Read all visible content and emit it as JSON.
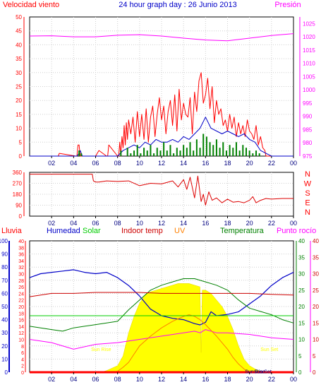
{
  "chart_data": [
    {
      "type": "line",
      "title": "24 hour graph day : 26 Junio 2013",
      "left_axis_title": "Velocidad viento",
      "right_axis_title": "Presión",
      "left_ylim": [
        0,
        50
      ],
      "left_ticks": [
        0,
        5,
        10,
        15,
        20,
        25,
        30,
        35,
        40,
        45,
        50
      ],
      "right_ylim": [
        975,
        1027.5
      ],
      "right_ticks": [
        975,
        980,
        985,
        990,
        995,
        1000,
        1005,
        1010,
        1015,
        1020,
        1025
      ],
      "x_ticks": [
        "02",
        "04",
        "06",
        "08",
        "10",
        "12",
        "14",
        "16",
        "18",
        "20",
        "22",
        "00"
      ],
      "grid": true,
      "series": [
        {
          "key": "gust",
          "color": "#ff0000",
          "x": [
            0,
            2.6,
            2.7,
            4.2,
            4.3,
            4.4,
            4.5,
            4.6,
            5,
            6,
            6.3,
            7,
            7.1,
            7.2,
            8,
            8.1,
            8.2,
            8.3,
            8.4,
            8.5,
            8.6,
            8.7,
            8.8,
            8.9,
            9,
            9.2,
            9.4,
            9.6,
            9.8,
            10,
            10.2,
            10.4,
            10.6,
            10.8,
            11,
            11.2,
            11.4,
            11.6,
            11.8,
            12,
            12.2,
            12.4,
            12.6,
            12.8,
            13,
            13.2,
            13.4,
            13.6,
            13.8,
            14,
            14.2,
            14.4,
            14.6,
            14.8,
            15,
            15.2,
            15.4,
            15.6,
            15.8,
            16,
            16.2,
            16.4,
            16.6,
            16.8,
            17,
            17.2,
            17.4,
            17.6,
            17.8,
            18,
            18.2,
            18.4,
            18.6,
            18.8,
            19,
            19.2,
            19.4,
            19.6,
            19.8,
            20,
            20.2,
            20.4,
            20.6,
            20.8,
            21,
            21.2,
            21.4,
            21.5,
            22,
            24
          ],
          "values": [
            0,
            0,
            1,
            0,
            0,
            4,
            4,
            0,
            0,
            0,
            2,
            0,
            0,
            4,
            0,
            0,
            5,
            0,
            7,
            3,
            11,
            4,
            12,
            6,
            13,
            8,
            14,
            5,
            16,
            7,
            15,
            6,
            17,
            5,
            14,
            18,
            7,
            15,
            21,
            13,
            18,
            8,
            16,
            20,
            11,
            22,
            9,
            24,
            13,
            19,
            15,
            14,
            21,
            8,
            23,
            16,
            27,
            30,
            19,
            22,
            28,
            17,
            25,
            12,
            20,
            15,
            17,
            11,
            13,
            9,
            15,
            10,
            14,
            7,
            12,
            8,
            11,
            7,
            13,
            9,
            8,
            6,
            11,
            4,
            7,
            3,
            2,
            0,
            0,
            0
          ]
        },
        {
          "key": "avg",
          "color": "#0000c8",
          "x": [
            0,
            4.3,
            4.5,
            4.6,
            4.8,
            7,
            8,
            8.5,
            9,
            9.5,
            10,
            10.5,
            11,
            11.5,
            12,
            12.5,
            13,
            13.5,
            14,
            14.5,
            15,
            15.5,
            16,
            16.5,
            17,
            17.5,
            18,
            18.5,
            19,
            19.5,
            20,
            20.5,
            21,
            21.5,
            22,
            24
          ],
          "values": [
            0,
            0,
            1,
            2,
            0,
            0,
            0,
            2,
            3,
            4,
            3,
            5,
            4,
            6,
            5,
            5,
            6,
            5,
            7,
            6,
            8,
            10,
            14,
            10,
            9,
            8,
            9,
            8,
            7,
            8,
            6,
            5,
            2,
            1,
            0,
            0
          ]
        },
        {
          "key": "wind",
          "color": "#008000",
          "x": [
            0,
            4.3,
            4.5,
            4.7,
            5,
            8,
            8.3,
            8.6,
            8.9,
            9.2,
            9.5,
            9.8,
            10.1,
            10.4,
            10.7,
            11,
            11.3,
            11.6,
            11.9,
            12.2,
            12.5,
            12.8,
            13.1,
            13.4,
            13.7,
            14,
            14.3,
            14.6,
            14.9,
            15.2,
            15.5,
            15.8,
            16.1,
            16.4,
            16.7,
            17,
            17.3,
            17.6,
            17.9,
            18.2,
            18.5,
            18.8,
            19.1,
            19.4,
            19.7,
            20,
            20.3,
            20.6,
            20.9,
            21.2,
            21.5,
            22,
            24
          ],
          "values": [
            0,
            0,
            2,
            1,
            0,
            0,
            2,
            0,
            3,
            1,
            2,
            4,
            1,
            3,
            2,
            4,
            1,
            3,
            2,
            5,
            2,
            4,
            1,
            3,
            2,
            4,
            3,
            5,
            2,
            6,
            3,
            8,
            7,
            5,
            4,
            6,
            3,
            5,
            2,
            4,
            3,
            5,
            2,
            4,
            3,
            2,
            1,
            2,
            1,
            0,
            0,
            0,
            0
          ]
        },
        {
          "key": "pressure",
          "color": "#ff00ff",
          "axis": "right",
          "x": [
            0,
            2,
            4,
            6,
            8,
            10,
            12,
            14,
            16,
            18,
            20,
            22,
            24
          ],
          "values": [
            1020.3,
            1020.4,
            1020.0,
            1020.0,
            1020.6,
            1020.8,
            1020.3,
            1019.5,
            1018.8,
            1018.5,
            1019.5,
            1020.5,
            1021.2
          ]
        }
      ]
    },
    {
      "type": "scatter",
      "right_axis_labels": [
        "N",
        "W",
        "S",
        "E",
        "N"
      ],
      "left_ylim": [
        0,
        360
      ],
      "left_ticks": [
        0,
        90,
        180,
        270,
        360
      ],
      "x_ticks": [
        "02",
        "04",
        "06",
        "08",
        "10",
        "12",
        "14",
        "16",
        "18",
        "20",
        "22",
        "00"
      ],
      "grid": true,
      "series": [
        {
          "key": "direction",
          "color": "#dd0000",
          "x": [
            0,
            2,
            4,
            5.7,
            5.8,
            6,
            6.3,
            7,
            8,
            9,
            10,
            11,
            12,
            13,
            13.5,
            14,
            14.3,
            14.6,
            15,
            15.3,
            15.6,
            15.8,
            16,
            16.3,
            16.6,
            17,
            17.5,
            18,
            18.5,
            19,
            19.5,
            20,
            20.3,
            20.6,
            21,
            21.5,
            22,
            23,
            24
          ],
          "values": [
            345,
            345,
            345,
            345,
            290,
            280,
            280,
            290,
            285,
            290,
            250,
            270,
            265,
            290,
            240,
            300,
            220,
            320,
            150,
            330,
            120,
            180,
            90,
            200,
            130,
            150,
            110,
            140,
            115,
            120,
            110,
            130,
            160,
            110,
            130,
            145,
            140,
            145,
            145
          ]
        }
      ]
    },
    {
      "type": "line",
      "axis_titles": [
        "Lluvia",
        "Humedad",
        "Solar",
        "Indoor temp",
        "UV",
        "Temperatura",
        "Punto rocío"
      ],
      "axis_title_colors": [
        "#ff0000",
        "#0000c8",
        "#00cc00",
        "#cc0000",
        "#ff8000",
        "#008000",
        "#ff00ff"
      ],
      "humidity_ylim": [
        0,
        100
      ],
      "humidity_ticks": [
        0,
        10,
        20,
        30,
        40,
        50,
        60,
        70,
        80,
        90,
        100
      ],
      "rain_ylim": [
        0,
        40
      ],
      "rain_ticks": [
        0,
        2,
        4,
        6,
        8,
        10,
        12,
        14,
        16,
        18,
        20,
        22,
        24,
        26,
        28,
        30,
        32,
        34,
        36,
        38,
        40
      ],
      "right_ylim": [
        0,
        40
      ],
      "right_ticks": [
        0,
        5,
        10,
        15,
        20,
        25,
        30,
        35,
        40
      ],
      "right2_ylim": [
        0,
        40
      ],
      "right2_ticks": [
        0,
        5,
        10,
        15,
        20,
        25,
        30,
        35,
        40
      ],
      "x_ticks": [
        "02",
        "04",
        "06",
        "08",
        "10",
        "12",
        "14",
        "16",
        "18",
        "20",
        "22",
        "00"
      ],
      "bottom_labels": [
        {
          "text": "Sun Rise",
          "x": 6.5,
          "y": 6.5
        },
        {
          "text": "Sun Set",
          "x": 21.8,
          "y": 6.5
        },
        {
          "text": "Sun Rise",
          "x": 20.5,
          "y": -0.3
        },
        {
          "text": "Sun Set",
          "x": 21.2,
          "y": -0.3
        }
      ],
      "grid": true,
      "series": [
        {
          "key": "solar",
          "color": "#ffff00",
          "fill": true,
          "x": [
            0,
            6.5,
            7,
            8,
            8.5,
            9,
            9.5,
            10,
            10.5,
            11,
            11.5,
            12,
            12.5,
            13,
            13.5,
            14,
            14.5,
            15,
            15.5,
            15.6,
            15.7,
            16,
            16.5,
            17,
            17.5,
            18,
            18.5,
            19,
            19.5,
            20,
            20.5,
            21,
            21.5,
            24
          ],
          "values": [
            0,
            0,
            0.5,
            2,
            5,
            12,
            17,
            21,
            23.5,
            24.5,
            25,
            25.5,
            26,
            26.5,
            27,
            27,
            27,
            26.5,
            26,
            6,
            25,
            25,
            24,
            22,
            20,
            17,
            13,
            8,
            4,
            2,
            1,
            0.3,
            0,
            0
          ]
        },
        {
          "key": "humidity",
          "color": "#0000c8",
          "x": [
            0,
            1,
            2,
            3,
            4,
            5,
            6,
            7,
            8,
            9,
            10,
            11,
            12,
            13,
            14,
            15,
            15.5,
            16,
            16.5,
            17,
            18,
            19,
            20,
            21,
            22,
            23,
            24
          ],
          "values": [
            72,
            75,
            76,
            77,
            78,
            76,
            75,
            76,
            72,
            66,
            58,
            48,
            43,
            41,
            40,
            37,
            36,
            38,
            46,
            43,
            44,
            46,
            52,
            58,
            66,
            72,
            76
          ]
        },
        {
          "key": "dewpoint",
          "color": "#ff00ff",
          "x": [
            0,
            2,
            4,
            6,
            8,
            10,
            12,
            14,
            15,
            15.5,
            16,
            17,
            18,
            20,
            22,
            24
          ],
          "values": [
            10,
            9,
            7,
            8.5,
            9,
            10,
            11,
            12,
            12.5,
            12,
            13,
            12,
            12,
            11.5,
            10.5,
            10
          ]
        },
        {
          "key": "temperature",
          "color": "#008000",
          "x": [
            0,
            1,
            2,
            3,
            4,
            5,
            6,
            7,
            8,
            9,
            10,
            11,
            12,
            13,
            14,
            15,
            16,
            17,
            18,
            19,
            20,
            21,
            22,
            23,
            24
          ],
          "values": [
            14,
            13.5,
            13,
            12.5,
            13.5,
            14,
            14.5,
            15,
            15.5,
            19,
            22,
            25,
            26.5,
            27.5,
            28.5,
            28.5,
            27.5,
            26.5,
            25,
            22,
            19.5,
            18.5,
            17.5,
            16,
            15
          ]
        },
        {
          "key": "indoor_temp",
          "color": "#cc0000",
          "x": [
            0,
            2,
            4,
            6,
            8,
            10,
            12,
            14,
            16,
            18,
            20,
            22,
            24
          ],
          "values": [
            23,
            24,
            24,
            24.3,
            24.3,
            24.3,
            24,
            24,
            24,
            24,
            24,
            23.7,
            23.5
          ]
        },
        {
          "key": "uv",
          "color": "#ff8000",
          "x": [
            0,
            7.5,
            8,
            8.5,
            9,
            9.5,
            10,
            11,
            12,
            13,
            14,
            14.5,
            15,
            15.5,
            16,
            17,
            18,
            18.5,
            19,
            19.5,
            20,
            24
          ],
          "values": [
            0,
            0,
            0.3,
            1.5,
            3,
            5.5,
            8,
            11,
            13.5,
            15.5,
            17,
            17.5,
            17,
            16,
            14.5,
            11,
            7,
            4.5,
            2.5,
            1,
            0,
            0
          ]
        },
        {
          "key": "rain",
          "color": "#ff0000",
          "x": [
            0,
            24
          ],
          "values": [
            0,
            0
          ]
        },
        {
          "key": "flat_green",
          "color": "#00cc00",
          "x": [
            0,
            24
          ],
          "values": [
            17.2,
            17.2
          ]
        }
      ]
    }
  ]
}
